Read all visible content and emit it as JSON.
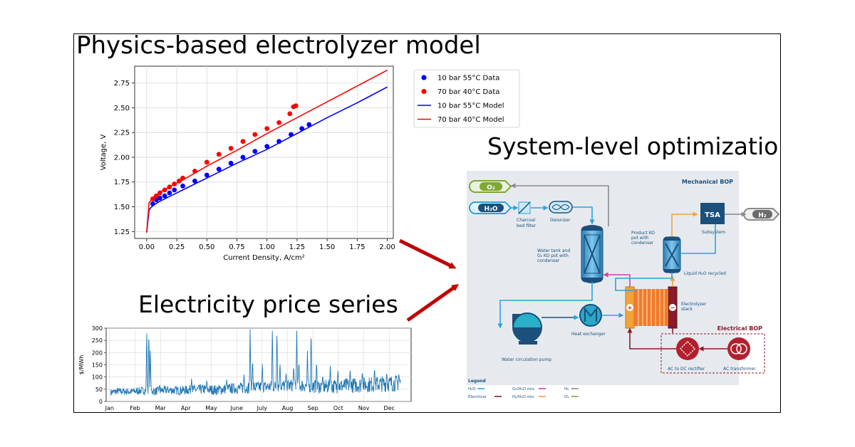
{
  "titles": {
    "model": "Physics-based electrolyzer model",
    "optimization": "System-level optimization",
    "price": "Electricity price series"
  },
  "chart_data": [
    {
      "type": "scatter",
      "xlabel": "Current Density, A/cm²",
      "ylabel": "Voltage, V",
      "xlim": [
        -0.1,
        2.05
      ],
      "ylim": [
        1.18,
        2.92
      ],
      "xticks": [
        "0.00",
        "0.25",
        "0.50",
        "0.75",
        "1.00",
        "1.25",
        "1.50",
        "1.75",
        "2.00"
      ],
      "yticks": [
        "1.25",
        "1.50",
        "1.75",
        "2.00",
        "2.25",
        "2.50",
        "2.75"
      ],
      "grid": true,
      "legend_position": "outside-right",
      "series": [
        {
          "name": "10 bar 55°C Data",
          "kind": "points",
          "color": "#0000ff",
          "x": [
            0.05,
            0.08,
            0.11,
            0.15,
            0.19,
            0.23,
            0.3,
            0.4,
            0.5,
            0.6,
            0.7,
            0.8,
            0.9,
            1.0,
            1.1,
            1.2,
            1.29,
            1.35
          ],
          "y": [
            1.53,
            1.57,
            1.59,
            1.61,
            1.64,
            1.67,
            1.71,
            1.76,
            1.82,
            1.88,
            1.94,
            2.0,
            2.06,
            2.11,
            2.16,
            2.23,
            2.29,
            2.33
          ]
        },
        {
          "name": "70 bar 40°C Data",
          "kind": "points",
          "color": "#ff0000",
          "x": [
            0.05,
            0.08,
            0.11,
            0.15,
            0.19,
            0.23,
            0.27,
            0.3,
            0.4,
            0.5,
            0.6,
            0.7,
            0.8,
            0.9,
            1.0,
            1.1,
            1.19,
            1.22,
            1.24
          ],
          "y": [
            1.58,
            1.61,
            1.64,
            1.67,
            1.7,
            1.73,
            1.76,
            1.79,
            1.86,
            1.95,
            2.03,
            2.09,
            2.16,
            2.23,
            2.29,
            2.35,
            2.44,
            2.51,
            2.52
          ]
        },
        {
          "name": "10 bar 55°C Model",
          "kind": "line",
          "color": "#0000ff",
          "x": [
            0.0,
            0.02,
            0.05,
            0.1,
            0.2,
            0.3,
            0.5,
            0.75,
            1.0,
            1.25,
            1.5,
            1.75,
            2.0
          ],
          "y": [
            1.24,
            1.47,
            1.51,
            1.55,
            1.61,
            1.67,
            1.79,
            1.94,
            2.08,
            2.24,
            2.4,
            2.55,
            2.71
          ]
        },
        {
          "name": "70 bar 40°C Model",
          "kind": "line",
          "color": "#ff0000",
          "x": [
            0.0,
            0.02,
            0.05,
            0.1,
            0.2,
            0.3,
            0.5,
            0.75,
            1.0,
            1.25,
            1.5,
            1.75,
            2.0
          ],
          "y": [
            1.24,
            1.54,
            1.59,
            1.64,
            1.71,
            1.77,
            1.91,
            2.07,
            2.24,
            2.4,
            2.56,
            2.72,
            2.88
          ]
        }
      ]
    },
    {
      "type": "line",
      "ylabel": "$/MWh",
      "ylim": [
        0,
        300
      ],
      "yticks": [
        "0",
        "50",
        "100",
        "150",
        "200",
        "250",
        "300"
      ],
      "months": [
        "Jan",
        "Feb",
        "Mar",
        "Apr",
        "May",
        "June",
        "July",
        "Aug",
        "Sep",
        "Oct",
        "Nov",
        "Dec"
      ],
      "grid": true,
      "series_color": "#1f77b4",
      "baseline": [
        [
          0.0,
          35
        ],
        [
          0.04,
          42
        ],
        [
          0.08,
          40
        ],
        [
          0.12,
          45
        ],
        [
          0.16,
          42
        ],
        [
          0.2,
          47
        ],
        [
          0.24,
          45
        ],
        [
          0.28,
          48
        ],
        [
          0.32,
          50
        ],
        [
          0.36,
          47
        ],
        [
          0.4,
          52
        ],
        [
          0.44,
          55
        ],
        [
          0.48,
          57
        ],
        [
          0.52,
          60
        ],
        [
          0.56,
          62
        ],
        [
          0.6,
          65
        ],
        [
          0.64,
          66
        ],
        [
          0.68,
          62
        ],
        [
          0.72,
          60
        ],
        [
          0.76,
          63
        ],
        [
          0.8,
          65
        ],
        [
          0.84,
          68
        ],
        [
          0.88,
          70
        ],
        [
          0.92,
          73
        ],
        [
          0.96,
          75
        ],
        [
          1.0,
          75
        ]
      ],
      "noise_amplitude": 22,
      "spikes": [
        [
          0.133,
          300
        ],
        [
          0.14,
          300
        ],
        [
          0.145,
          220
        ],
        [
          0.175,
          70
        ],
        [
          0.28,
          95
        ],
        [
          0.33,
          90
        ],
        [
          0.395,
          90
        ],
        [
          0.452,
          110
        ],
        [
          0.472,
          300
        ],
        [
          0.48,
          180
        ],
        [
          0.512,
          160
        ],
        [
          0.545,
          300
        ],
        [
          0.56,
          300
        ],
        [
          0.57,
          160
        ],
        [
          0.59,
          120
        ],
        [
          0.615,
          150
        ],
        [
          0.625,
          300
        ],
        [
          0.632,
          170
        ],
        [
          0.66,
          210
        ],
        [
          0.672,
          300
        ],
        [
          0.69,
          170
        ],
        [
          0.71,
          110
        ],
        [
          0.735,
          150
        ],
        [
          0.76,
          130
        ],
        [
          0.8,
          135
        ],
        [
          0.84,
          125
        ],
        [
          0.88,
          140
        ],
        [
          0.92,
          120
        ],
        [
          0.96,
          115
        ]
      ]
    }
  ],
  "diagram": {
    "mechanical_bop": "Mechanical BOP",
    "electrical_bop": "Electrical BOP",
    "o2": "O₂",
    "h2o": "H₂O",
    "h2": "H₂",
    "tsa": "TSA",
    "charcoal": [
      "Charcoal",
      "bed filter"
    ],
    "deionizer": "Deionizer",
    "water_tank": [
      "Water tank and",
      "O₂ KO pot with",
      "condenser"
    ],
    "product_ko": [
      "Product KO",
      "pot with",
      "condenser"
    ],
    "subsystem": "Subsystem",
    "liquid_recycled": "Liquid H₂O recycled",
    "electrolyzer_stack": [
      "Electrolyzer",
      "stack"
    ],
    "heat_exchanger": "Heat exchanger",
    "water_pump": "Water circulation pump",
    "rectifier": "AC to DC rectifier",
    "transformer": "AC transformer",
    "plus": "+",
    "minus": "−",
    "legend_title": "Legend",
    "legend": [
      {
        "label": "H₂O",
        "color": "#29a3dc"
      },
      {
        "label": "O₂/H₂O mix",
        "color": "#d63ca8"
      },
      {
        "label": "H₂",
        "color": "#8a8a8a"
      },
      {
        "label": "Electrical",
        "color": "#8b1a2b"
      },
      {
        "label": "H₂/H₂O mix",
        "color": "#f2a23a"
      },
      {
        "label": "O₂",
        "color": "#7ea832"
      }
    ],
    "colors": {
      "water": "#29a3dc",
      "o2h2o": "#d63ca8",
      "h2": "#8a8a8a",
      "electrical": "#8b1a2b",
      "h2h2o": "#f2a23a",
      "o2": "#7ea832",
      "panel": "#e6eaee",
      "navy": "#1b4f7c",
      "red_arrow": "#c00000"
    }
  }
}
